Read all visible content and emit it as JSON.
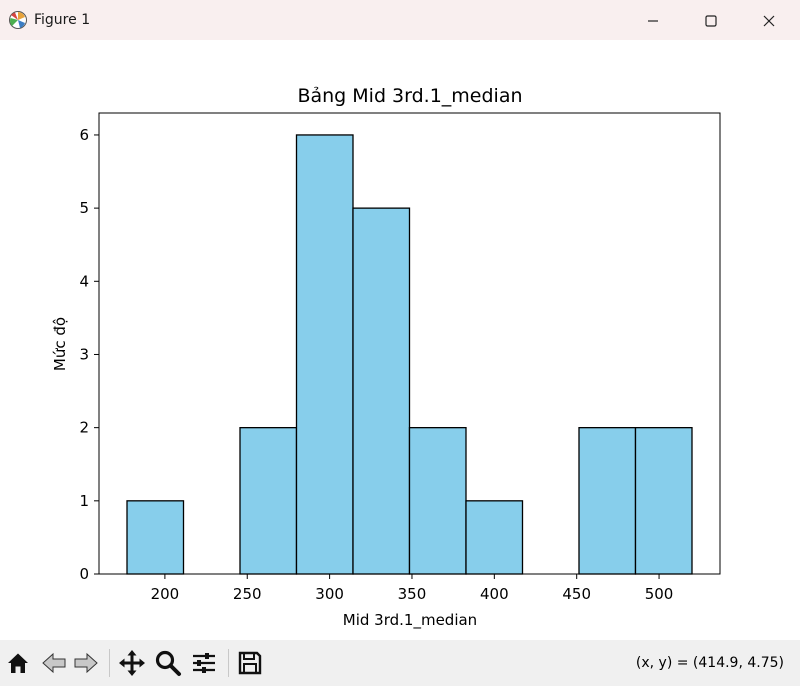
{
  "window": {
    "title": "Figure 1",
    "icon": "matplotlib-icon",
    "controls": [
      "minimize-icon",
      "maximize-icon",
      "close-icon"
    ]
  },
  "toolbar": {
    "buttons": [
      "home-icon",
      "back-arrow-icon",
      "forward-arrow-icon",
      "pan-icon",
      "zoom-icon",
      "configure-subplots-icon",
      "save-icon"
    ],
    "coords": "(x, y) = (414.9, 4.75)"
  },
  "chart_data": {
    "type": "bar",
    "title": "Bảng Mid 3rd.1_median",
    "xlabel": "Mid 3rd.1_median",
    "ylabel": "Mức độ",
    "bin_edges": [
      177,
      211.3,
      245.6,
      279.9,
      314.2,
      348.5,
      382.8,
      417.1,
      451.4,
      485.7,
      520
    ],
    "values": [
      1,
      0,
      2,
      6,
      5,
      2,
      1,
      0,
      2,
      2
    ],
    "xlim": [
      160,
      537
    ],
    "ylim": [
      0,
      6.3
    ],
    "xticks": [
      200,
      250,
      300,
      350,
      400,
      450,
      500
    ],
    "yticks": [
      0,
      1,
      2,
      3,
      4,
      5,
      6
    ],
    "bar_color": "#87ceeb",
    "edge_color": "#000000",
    "grid": false
  }
}
